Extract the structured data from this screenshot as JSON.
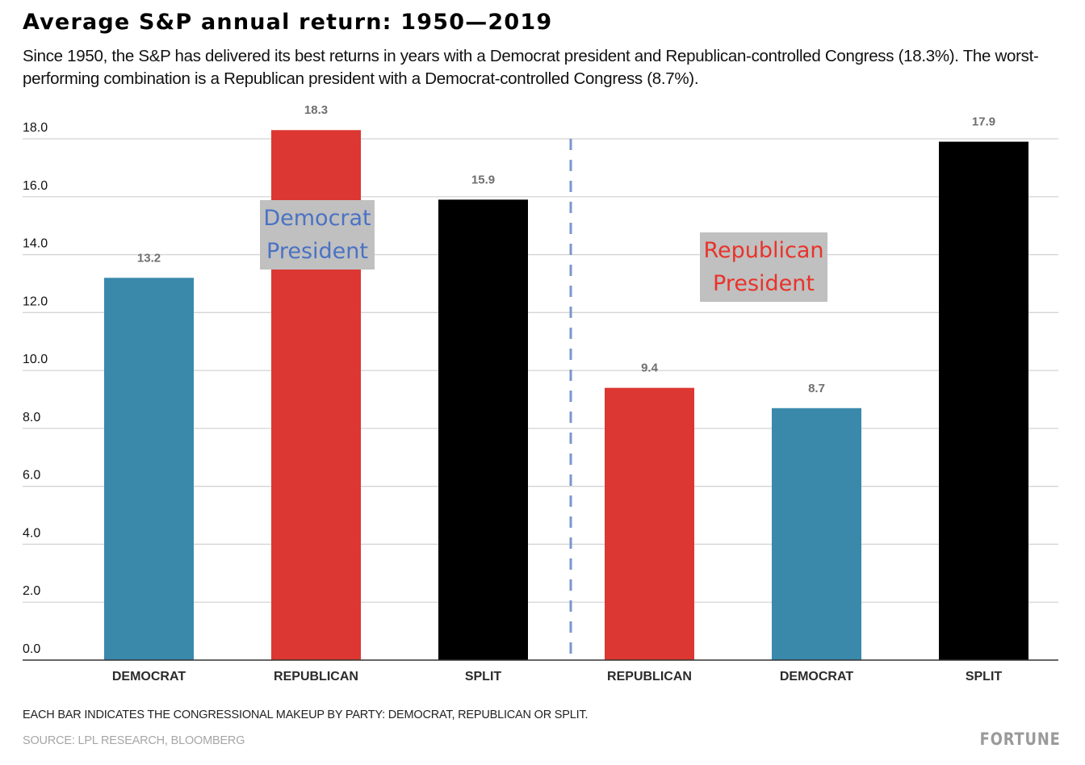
{
  "header": {
    "title": "Average S&P annual return: 1950—2019",
    "subtitle": "Since 1950, the S&P has delivered its best returns in years with a Democrat president and Republican-controlled Congress (18.3%). The worst-performing combination is a Republican president with a Democrat-controlled Congress (8.7%)."
  },
  "footer": {
    "note": "EACH BAR INDICATES THE CONGRESSIONAL MAKEUP BY PARTY: DEMOCRAT, REPUBLICAN OR SPLIT.",
    "source": "SOURCE: LPL RESEARCH, BLOOMBERG",
    "brand": "FORTUNE"
  },
  "colors": {
    "democrat": "#3a89ab",
    "republican": "#dc3732",
    "split": "#000000",
    "divider": "#7b96cc",
    "annotation_bg": "#c0c0c0",
    "democrat_annotation_text": "#4a72c4",
    "republican_annotation_text": "#e8332a"
  },
  "chart_data": {
    "type": "bar",
    "title": "Average S&P annual return: 1950—2019",
    "xlabel": "",
    "ylabel": "",
    "ylim": [
      0,
      18
    ],
    "yticks": [
      0,
      2,
      4,
      6,
      8,
      10,
      12,
      14,
      16,
      18
    ],
    "ytick_labels": [
      "0.0",
      "2.0",
      "4.0",
      "6.0",
      "8.0",
      "10.0",
      "12.0",
      "14.0",
      "16.0",
      "18.0"
    ],
    "grid": true,
    "categories": [
      "DEMOCRAT",
      "REPUBLICAN",
      "SPLIT",
      "REPUBLICAN",
      "DEMOCRAT",
      "SPLIT"
    ],
    "values": [
      13.2,
      18.3,
      15.9,
      9.4,
      8.7,
      17.9
    ],
    "value_labels": [
      "13.2",
      "18.3",
      "15.9",
      "9.4",
      "8.7",
      "17.9"
    ],
    "bar_party": [
      "democrat",
      "republican",
      "split",
      "republican",
      "democrat",
      "split"
    ],
    "groups": [
      {
        "name": "Democrat President",
        "bars": [
          0,
          1,
          2
        ],
        "annotation_color": "democrat_annotation_text"
      },
      {
        "name": "Republican President",
        "bars": [
          3,
          4,
          5
        ],
        "annotation_color": "republican_annotation_text"
      }
    ],
    "annotations": [
      {
        "lines": [
          "Democrat",
          "President"
        ]
      },
      {
        "lines": [
          "Republican",
          "President"
        ]
      }
    ],
    "divider": "dashed line between the two president groups"
  }
}
